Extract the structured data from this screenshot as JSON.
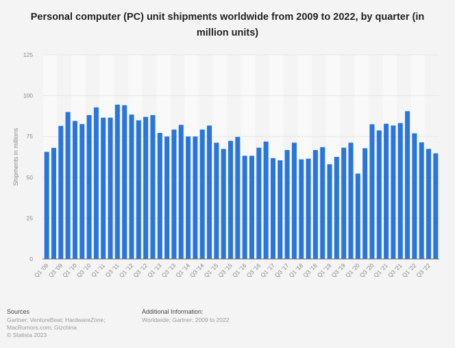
{
  "chart_data": {
    "type": "bar",
    "title": "Personal computer (PC) unit shipments worldwide from 2009 to 2022, by quarter (in million units)",
    "xlabel": "",
    "ylabel": "Shipments in millions",
    "ylim": [
      0,
      125
    ],
    "yticks": [
      0,
      25,
      50,
      75,
      100,
      125
    ],
    "grid": true,
    "bar_color": "#2876dd",
    "categories": [
      "Q1 '09",
      "Q2 '09",
      "Q3 '09",
      "Q4 '09",
      "Q1 '10",
      "Q2 '10",
      "Q3 '10",
      "Q4 '10",
      "Q1 '11",
      "Q2 '11",
      "Q3 '11",
      "Q4 '11",
      "Q1 '12",
      "Q2 '12",
      "Q3 '12",
      "Q4 '12",
      "Q1 '13",
      "Q2 '13",
      "Q3 '13",
      "Q4 '13",
      "Q1 '14",
      "Q2 '14",
      "Q3 '14",
      "Q4 '14",
      "Q1 '15",
      "Q2 '15",
      "Q3 '15",
      "Q4 '15",
      "Q1 '16",
      "Q2 '16",
      "Q3 '16",
      "Q4 '16",
      "Q1 '17",
      "Q2 '17",
      "Q3 '17",
      "Q4 '17",
      "Q1 '18",
      "Q2 '18",
      "Q3 '18",
      "Q4 '18",
      "Q1 '19",
      "Q2 '19",
      "Q3 '19",
      "Q4 '19",
      "Q1 '20",
      "Q2 '20",
      "Q3 '20",
      "Q4 '20",
      "Q1 '21",
      "Q2 '21",
      "Q3 '21",
      "Q4 '21",
      "Q1 '22",
      "Q2 '22",
      "Q3 '22",
      "Q4 '22"
    ],
    "values": [
      65.6,
      68.0,
      81.5,
      90.0,
      84.5,
      82.6,
      88.1,
      92.8,
      86.5,
      86.5,
      94.5,
      94.1,
      88.4,
      84.9,
      87.0,
      88.1,
      77.2,
      75.0,
      79.2,
      82.1,
      75.0,
      75.0,
      79.2,
      81.7,
      71.2,
      67.4,
      72.3,
      74.7,
      63.2,
      63.2,
      68.1,
      71.9,
      61.7,
      60.4,
      66.7,
      71.2,
      61.0,
      61.4,
      66.7,
      68.5,
      58.0,
      62.5,
      68.1,
      71.2,
      52.3,
      67.8,
      82.5,
      78.7,
      82.8,
      81.7,
      83.2,
      90.5,
      76.9,
      71.4,
      67.4,
      64.7
    ],
    "visible_tick_labels": [
      "Q1 '09",
      "Q3 '09",
      "Q1 '10",
      "Q3 '10",
      "Q1 '11",
      "Q3 '11",
      "Q1 '12",
      "Q3 '12",
      "Q1 '13",
      "Q3 '13",
      "Q1 '14",
      "Q3 '14",
      "Q1 '15",
      "Q3 '15",
      "Q1 '16",
      "Q3 '16",
      "Q1 '17",
      "Q3 '17",
      "Q1 '18",
      "Q3 '18",
      "Q1 '19",
      "Q3 '19",
      "Q1 '20",
      "Q3 '20",
      "Q1 '21",
      "Q3 '21",
      "Q1 '22",
      "Q3 '22"
    ]
  },
  "footer": {
    "sources_heading": "Sources",
    "sources_line1": "Gartner; VentureBeat; HardwareZone;",
    "sources_line2": "MacRumors.com; Gizchina",
    "copyright": "© Statista 2023",
    "additional_heading": "Additional Information:",
    "additional_text": "Worldwide; Gartner; 2009 to 2022"
  }
}
